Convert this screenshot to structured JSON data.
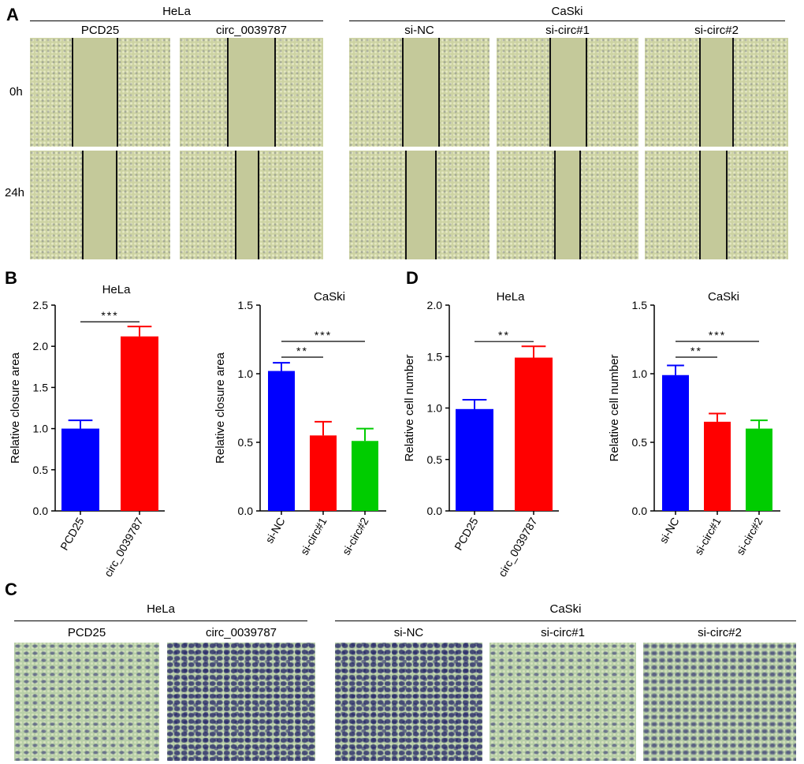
{
  "panel_a": {
    "letter": "A",
    "groups": [
      {
        "name": "HeLa",
        "conditions": [
          "PCD25",
          "circ_0039787"
        ]
      },
      {
        "name": "CaSki",
        "conditions": [
          "si-NC",
          "si-circ#1",
          "si-circ#2"
        ]
      }
    ],
    "rows": [
      "0h",
      "24h"
    ]
  },
  "panel_c": {
    "letter": "C",
    "groups": [
      {
        "name": "HeLa",
        "conditions": [
          "PCD25",
          "circ_0039787"
        ]
      },
      {
        "name": "CaSki",
        "conditions": [
          "si-NC",
          "si-circ#1",
          "si-circ#2"
        ]
      }
    ]
  },
  "panel_b_letter": "B",
  "panel_d_letter": "D",
  "colors": {
    "blue": "#0000ff",
    "red": "#ff0000",
    "green": "#00cc00"
  },
  "chart_data": [
    {
      "type": "bar",
      "panel": "B",
      "title": "HeLa",
      "ylabel": "Relative closure area",
      "categories": [
        "PCD25",
        "circ_0039787"
      ],
      "values": [
        1.0,
        2.12
      ],
      "errors": [
        0.1,
        0.12
      ],
      "colors": [
        "#0000ff",
        "#ff0000"
      ],
      "ylim": [
        0,
        2.5
      ],
      "yticks": [
        "0.0",
        "0.5",
        "1.0",
        "1.5",
        "2.0",
        "2.5"
      ],
      "significance": [
        {
          "from": 0,
          "to": 1,
          "label": "***"
        }
      ]
    },
    {
      "type": "bar",
      "panel": "B",
      "title": "CaSki",
      "ylabel": "Relative closure area",
      "categories": [
        "si-NC",
        "si-circ#1",
        "si-circ#2"
      ],
      "values": [
        1.02,
        0.55,
        0.51
      ],
      "errors": [
        0.06,
        0.1,
        0.09
      ],
      "colors": [
        "#0000ff",
        "#ff0000",
        "#00cc00"
      ],
      "ylim": [
        0,
        1.5
      ],
      "yticks": [
        "0.0",
        "0.5",
        "1.0",
        "1.5"
      ],
      "significance": [
        {
          "from": 0,
          "to": 1,
          "label": "**"
        },
        {
          "from": 0,
          "to": 2,
          "label": "***"
        }
      ]
    },
    {
      "type": "bar",
      "panel": "D",
      "title": "HeLa",
      "ylabel": "Relative cell number",
      "categories": [
        "PCD25",
        "circ_0039787"
      ],
      "values": [
        0.99,
        1.49
      ],
      "errors": [
        0.09,
        0.11
      ],
      "colors": [
        "#0000ff",
        "#ff0000"
      ],
      "ylim": [
        0,
        2.0
      ],
      "yticks": [
        "0.0",
        "0.5",
        "1.0",
        "1.5",
        "2.0"
      ],
      "significance": [
        {
          "from": 0,
          "to": 1,
          "label": "**"
        }
      ]
    },
    {
      "type": "bar",
      "panel": "D",
      "title": "CaSki",
      "ylabel": "Relative cell number",
      "categories": [
        "si-NC",
        "si-circ#1",
        "si-circ#2"
      ],
      "values": [
        0.99,
        0.65,
        0.6
      ],
      "errors": [
        0.07,
        0.06,
        0.06
      ],
      "colors": [
        "#0000ff",
        "#ff0000",
        "#00cc00"
      ],
      "ylim": [
        0,
        1.5
      ],
      "yticks": [
        "0.0",
        "0.5",
        "1.0",
        "1.5"
      ],
      "significance": [
        {
          "from": 0,
          "to": 1,
          "label": "**"
        },
        {
          "from": 0,
          "to": 2,
          "label": "***"
        }
      ]
    }
  ]
}
